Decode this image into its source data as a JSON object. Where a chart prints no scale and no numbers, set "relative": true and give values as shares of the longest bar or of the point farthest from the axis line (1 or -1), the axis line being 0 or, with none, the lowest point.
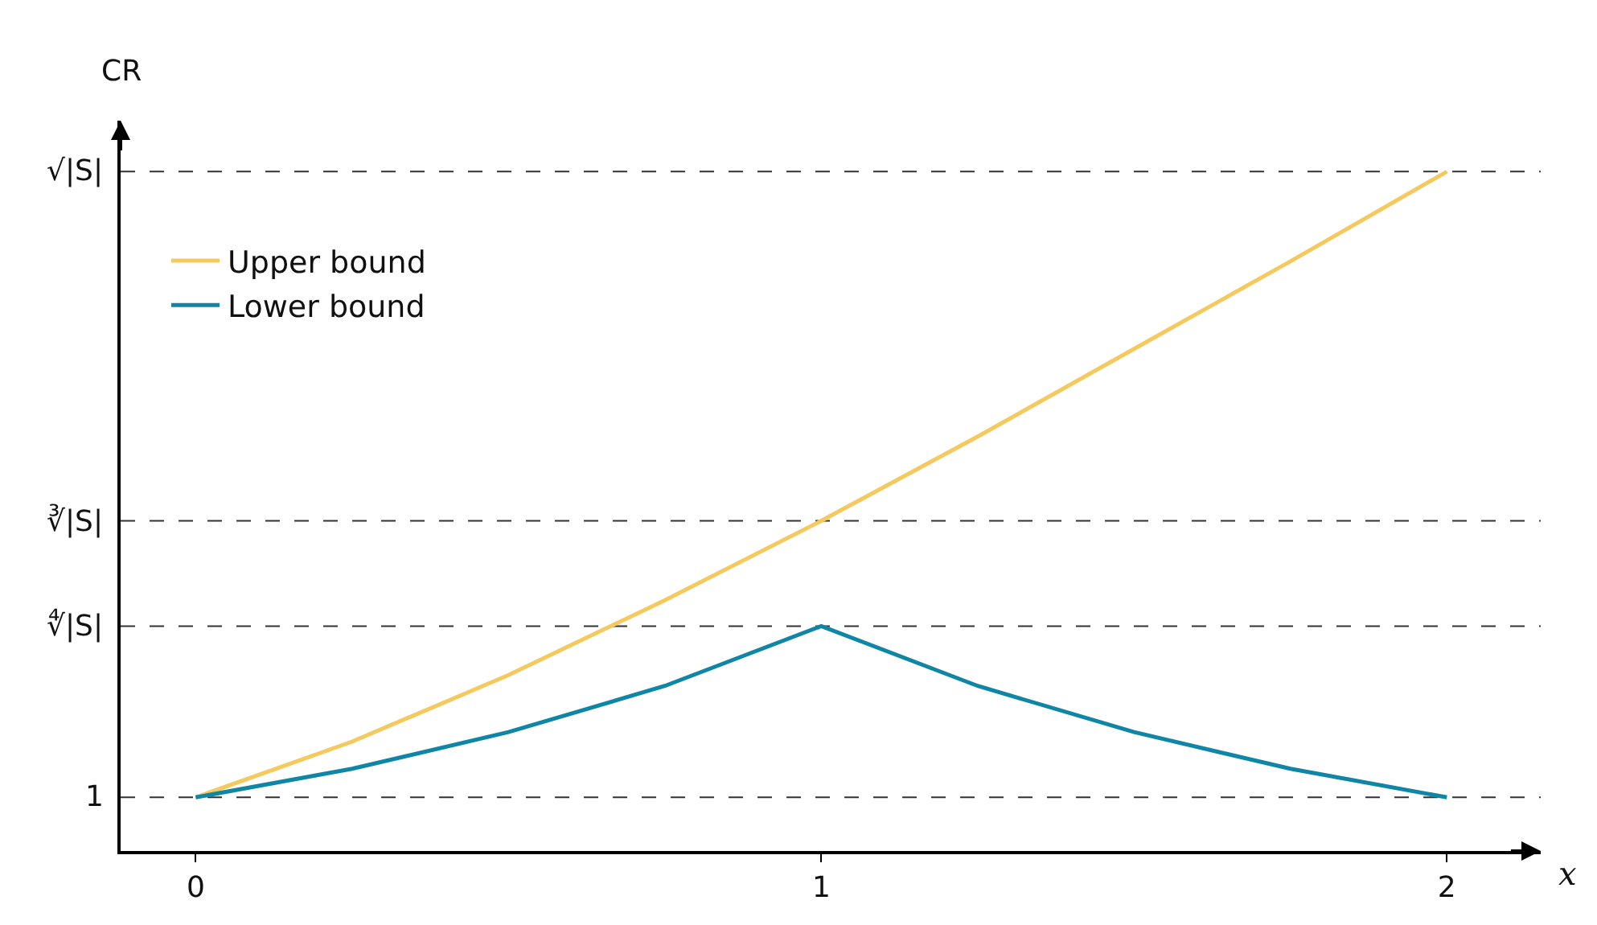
{
  "chart_data": {
    "type": "line",
    "xlabel": "x",
    "ylabel": "CR",
    "relative": true,
    "x": [
      0,
      0.25,
      0.5,
      0.75,
      1,
      1.25,
      1.5,
      1.75,
      2
    ],
    "series": [
      {
        "name": "Upper bound",
        "color": "#f4c95d",
        "values": [
          0.079,
          0.161,
          0.259,
          0.369,
          0.486,
          0.61,
          0.739,
          0.868,
          1
        ]
      },
      {
        "name": "Lower bound",
        "color": "#0f86a5",
        "values": [
          0.079,
          0.121,
          0.175,
          0.243,
          0.331,
          0.243,
          0.175,
          0.121,
          0.079
        ]
      }
    ],
    "xlim": [
      -0.12,
      2.15
    ],
    "xticks": [
      0,
      1,
      2
    ],
    "ref_lines": [
      {
        "axis": "y",
        "value": 0.079,
        "line_style": "dashed",
        "color": "#333333"
      },
      {
        "axis": "y",
        "value": 0.331,
        "label": "∜|S|",
        "line_style": "dashed",
        "color": "#333333"
      },
      {
        "axis": "y",
        "value": 0.486,
        "label": "∛|S|",
        "line_style": "dashed",
        "color": "#333333"
      },
      {
        "axis": "y",
        "value": 1,
        "label": "√|S|",
        "line_style": "dashed",
        "color": "#333333"
      }
    ],
    "annotations": [
      "1"
    ],
    "grid": false,
    "legend": "top left",
    "marker": "none",
    "line_style": "solid"
  }
}
